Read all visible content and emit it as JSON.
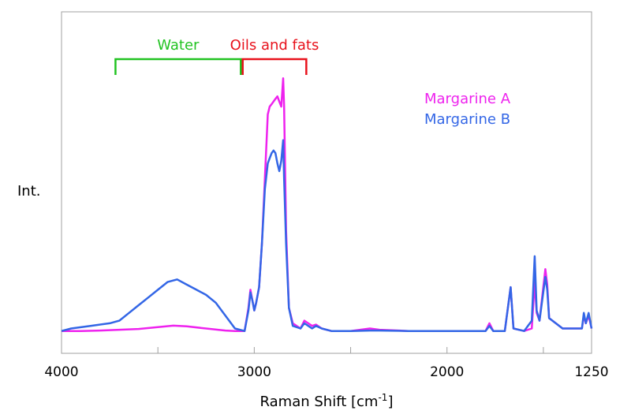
{
  "chart_data": {
    "type": "line",
    "title": "",
    "xlabel": "Raman Shift [cm",
    "xlabel_sup": "-1",
    "xlabel_close": "]",
    "ylabel": "Int.",
    "xlim": [
      4000,
      1250
    ],
    "ylim": [
      0,
      100
    ],
    "x_ticks": [
      4000,
      3000,
      2000,
      1250
    ],
    "x_tick_labels": [
      "4000",
      "3000",
      "2000",
      "1250"
    ],
    "x_minor_ticks": [
      3500,
      2500,
      1500
    ],
    "grid": false,
    "legend_position": "top-right",
    "annotations": [
      {
        "label": "Water",
        "x_from": 3720,
        "x_to": 3070,
        "color": "#22c322"
      },
      {
        "label": "Oils and fats",
        "x_from": 3060,
        "x_to": 2730,
        "color": "#e8121c"
      }
    ],
    "series": [
      {
        "name": "Margarine A",
        "color": "#ee22ee",
        "points": [
          [
            4000,
            1
          ],
          [
            3900,
            1
          ],
          [
            3800,
            1.2
          ],
          [
            3700,
            1.5
          ],
          [
            3600,
            1.8
          ],
          [
            3500,
            2.5
          ],
          [
            3420,
            3.1
          ],
          [
            3350,
            2.8
          ],
          [
            3250,
            2
          ],
          [
            3150,
            1.2
          ],
          [
            3100,
            1
          ],
          [
            3050,
            1
          ],
          [
            3030,
            10
          ],
          [
            3020,
            17
          ],
          [
            3010,
            13
          ],
          [
            3000,
            9
          ],
          [
            2990,
            12
          ],
          [
            2975,
            18
          ],
          [
            2960,
            35
          ],
          [
            2945,
            60
          ],
          [
            2930,
            85
          ],
          [
            2920,
            88
          ],
          [
            2910,
            89
          ],
          [
            2900,
            90
          ],
          [
            2890,
            91
          ],
          [
            2880,
            92
          ],
          [
            2870,
            90
          ],
          [
            2860,
            88
          ],
          [
            2850,
            99
          ],
          [
            2845,
            88
          ],
          [
            2835,
            40
          ],
          [
            2820,
            10
          ],
          [
            2800,
            4
          ],
          [
            2760,
            2
          ],
          [
            2740,
            5
          ],
          [
            2720,
            4
          ],
          [
            2700,
            3
          ],
          [
            2680,
            3.5
          ],
          [
            2650,
            2
          ],
          [
            2600,
            1
          ],
          [
            2500,
            1
          ],
          [
            2400,
            2
          ],
          [
            2350,
            1.5
          ],
          [
            2200,
            1
          ],
          [
            2000,
            1
          ],
          [
            1900,
            1
          ],
          [
            1800,
            1
          ],
          [
            1780,
            4
          ],
          [
            1760,
            1
          ],
          [
            1700,
            1
          ],
          [
            1670,
            18
          ],
          [
            1655,
            2
          ],
          [
            1600,
            1
          ],
          [
            1560,
            2
          ],
          [
            1545,
            20
          ],
          [
            1535,
            8
          ],
          [
            1520,
            5
          ],
          [
            1490,
            25
          ],
          [
            1480,
            19
          ],
          [
            1470,
            6
          ],
          [
            1400,
            2
          ],
          [
            1300,
            2
          ],
          [
            1290,
            7
          ],
          [
            1280,
            4
          ],
          [
            1265,
            7
          ],
          [
            1250,
            2
          ]
        ]
      },
      {
        "name": "Margarine B",
        "color": "#3366e6",
        "points": [
          [
            4000,
            1
          ],
          [
            3950,
            2
          ],
          [
            3850,
            3
          ],
          [
            3750,
            4
          ],
          [
            3700,
            5
          ],
          [
            3650,
            8
          ],
          [
            3600,
            11
          ],
          [
            3550,
            14
          ],
          [
            3500,
            17
          ],
          [
            3450,
            20
          ],
          [
            3400,
            21
          ],
          [
            3350,
            19
          ],
          [
            3300,
            17
          ],
          [
            3250,
            15
          ],
          [
            3200,
            12
          ],
          [
            3150,
            7
          ],
          [
            3100,
            2
          ],
          [
            3050,
            1
          ],
          [
            3030,
            9
          ],
          [
            3020,
            16
          ],
          [
            3010,
            13
          ],
          [
            3000,
            9
          ],
          [
            2990,
            12
          ],
          [
            2975,
            18
          ],
          [
            2960,
            35
          ],
          [
            2945,
            56
          ],
          [
            2930,
            66
          ],
          [
            2920,
            68
          ],
          [
            2910,
            70
          ],
          [
            2900,
            71
          ],
          [
            2890,
            70
          ],
          [
            2880,
            66
          ],
          [
            2870,
            63
          ],
          [
            2860,
            67
          ],
          [
            2850,
            75
          ],
          [
            2845,
            60
          ],
          [
            2835,
            35
          ],
          [
            2820,
            10
          ],
          [
            2800,
            3
          ],
          [
            2760,
            2
          ],
          [
            2740,
            4
          ],
          [
            2720,
            3
          ],
          [
            2700,
            2
          ],
          [
            2680,
            3
          ],
          [
            2650,
            2
          ],
          [
            2600,
            1
          ],
          [
            2500,
            1
          ],
          [
            2400,
            1.2
          ],
          [
            2350,
            1.2
          ],
          [
            2200,
            1
          ],
          [
            2000,
            1
          ],
          [
            1900,
            1
          ],
          [
            1800,
            1
          ],
          [
            1780,
            3
          ],
          [
            1760,
            1
          ],
          [
            1700,
            1
          ],
          [
            1670,
            18
          ],
          [
            1655,
            2
          ],
          [
            1600,
            1
          ],
          [
            1560,
            5
          ],
          [
            1545,
            30
          ],
          [
            1535,
            9
          ],
          [
            1520,
            5
          ],
          [
            1490,
            22
          ],
          [
            1480,
            17
          ],
          [
            1470,
            6
          ],
          [
            1400,
            2
          ],
          [
            1300,
            2
          ],
          [
            1290,
            8
          ],
          [
            1280,
            4
          ],
          [
            1265,
            8
          ],
          [
            1250,
            2
          ]
        ]
      }
    ]
  }
}
